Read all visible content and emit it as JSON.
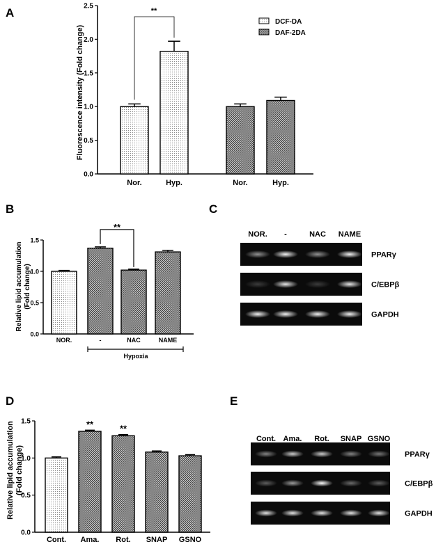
{
  "panel_labels": [
    "A",
    "B",
    "C",
    "D",
    "E"
  ],
  "sig_marker": "**",
  "chart_data": [
    {
      "panel": "A",
      "type": "bar",
      "ylabel": "Fluorescence intensity (Fold change)",
      "ylim": [
        0,
        2.5
      ],
      "yticks": [
        "0.0",
        "0.5",
        "1.0",
        "1.5",
        "2.0",
        "2.5"
      ],
      "groups": [
        {
          "series": "DCF-DA",
          "categories": [
            "Nor.",
            "Hyp."
          ],
          "values": [
            1.0,
            1.82
          ],
          "errors": [
            0.04,
            0.15
          ]
        },
        {
          "series": "DAF-2DA",
          "categories": [
            "Nor.",
            "Hyp."
          ],
          "values": [
            1.0,
            1.09
          ],
          "errors": [
            0.04,
            0.05
          ]
        }
      ],
      "legend": [
        "DCF-DA",
        "DAF-2DA"
      ],
      "legend_position": "top-right",
      "significance": "**"
    },
    {
      "panel": "B",
      "type": "bar",
      "ylabel_lines": [
        "Relative lipid accumulation",
        "(Fold change)"
      ],
      "ylim": [
        0,
        1.5
      ],
      "yticks": [
        "0.0",
        "0.5",
        "1.0",
        "1.5"
      ],
      "categories": [
        "NOR.",
        "-",
        "NAC",
        "NAME"
      ],
      "values": [
        1.0,
        1.37,
        1.02,
        1.31
      ],
      "errors": [
        0.015,
        0.02,
        0.015,
        0.025
      ],
      "group_label": "Hypoxia",
      "significance": "**"
    },
    {
      "panel": "D",
      "type": "bar",
      "ylabel_lines": [
        "Relative lipid accumulation",
        "(Fold change)"
      ],
      "ylim": [
        0,
        1.5
      ],
      "yticks": [
        "0.0",
        "0.5",
        "1.0",
        "1.5"
      ],
      "categories": [
        "Cont.",
        "Ama.",
        "Rot.",
        "SNAP",
        "GSNO"
      ],
      "values": [
        1.0,
        1.36,
        1.3,
        1.08,
        1.03
      ],
      "errors": [
        0.015,
        0.015,
        0.015,
        0.015,
        0.015
      ],
      "significance": [
        "",
        "**",
        "**",
        "",
        ""
      ]
    }
  ],
  "gel_c": {
    "lanes": [
      "NOR.",
      "-",
      "NAC",
      "NAME"
    ],
    "rows": [
      {
        "label": "PPARγ",
        "intensity": [
          0.55,
          0.95,
          0.55,
          0.95
        ]
      },
      {
        "label": "C/EBPβ",
        "intensity": [
          0.2,
          0.9,
          0.2,
          0.9
        ]
      },
      {
        "label": "GAPDH",
        "intensity": [
          0.95,
          0.95,
          0.95,
          0.95
        ]
      }
    ]
  },
  "gel_e": {
    "lanes": [
      "Cont.",
      "Ama.",
      "Rot.",
      "SNAP",
      "GSNO"
    ],
    "rows": [
      {
        "label": "PPARγ",
        "intensity": [
          0.5,
          0.8,
          0.8,
          0.5,
          0.45
        ]
      },
      {
        "label": "C/EBPβ",
        "intensity": [
          0.35,
          0.6,
          1.0,
          0.4,
          0.35
        ]
      },
      {
        "label": "GAPDH",
        "intensity": [
          0.9,
          0.9,
          0.9,
          0.9,
          0.9
        ]
      }
    ]
  }
}
